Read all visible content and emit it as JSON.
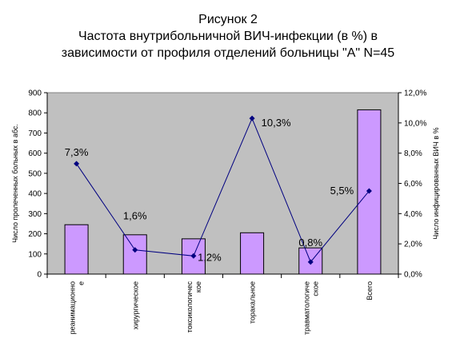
{
  "title_lines": [
    "Рисунок 2",
    "Частота внутрибольничной ВИЧ-инфекции (в %) в",
    "зависимости от профиля отделений больницы \"А\"  N=45"
  ],
  "chart_data": {
    "type": "bar",
    "categories": [
      [
        "реанимационно",
        "е"
      ],
      [
        "хирургическое"
      ],
      [
        "токсикологичес",
        "кое"
      ],
      [
        "торакальное"
      ],
      [
        "травматологиче",
        "ское"
      ],
      [
        "Всего"
      ]
    ],
    "series": [
      {
        "type": "bar",
        "axis": "left",
        "values": [
          245,
          195,
          175,
          205,
          130,
          815
        ],
        "color": "#cc99ff"
      },
      {
        "type": "line",
        "axis": "right",
        "values": [
          7.3,
          1.6,
          1.2,
          10.3,
          0.8,
          5.5
        ],
        "labels": [
          "7,3%",
          "1,6%",
          "1,2%",
          "10,3%",
          "0,8%",
          "5,5%"
        ],
        "color": "#000080"
      }
    ],
    "y_left": {
      "label": "Число пролеченных больных в абс.",
      "ylim": [
        0,
        900
      ],
      "ticks": [
        "0",
        "100",
        "200",
        "300",
        "400",
        "500",
        "600",
        "700",
        "800",
        "900"
      ]
    },
    "y_right": {
      "label": "Число инфицированных ВИЧ в %",
      "ylim": [
        0,
        12
      ],
      "ticks": [
        "0,0%",
        "2,0%",
        "4,0%",
        "6,0%",
        "8,0%",
        "10,0%",
        "12,0%"
      ]
    },
    "plot_background": "#c0c0c0",
    "grid": false,
    "legend": "none"
  }
}
